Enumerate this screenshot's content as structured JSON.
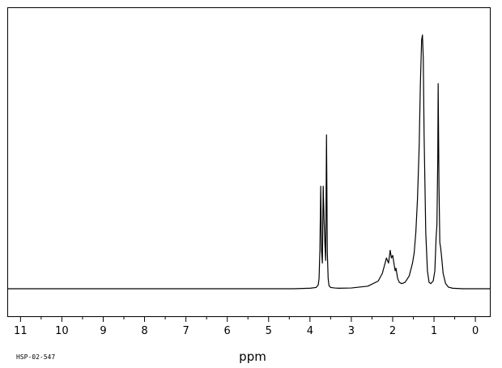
{
  "chart_data": {
    "type": "line",
    "title": "",
    "xlabel": "ppm",
    "ylabel": "",
    "sample_id": "HSP-02-547",
    "xlim": [
      11.3,
      -0.35
    ],
    "ylim": [
      0,
      100
    ],
    "x_reversed": true,
    "grid": false,
    "legend": "none",
    "major_ticks": [
      11,
      10,
      9,
      8,
      7,
      6,
      5,
      4,
      3,
      2,
      1,
      0
    ],
    "tick_labels": [
      "11",
      "10",
      "9",
      "8",
      "7",
      "6",
      "5",
      "4",
      "3",
      "2",
      "1",
      "0"
    ],
    "minor_tick_step": 0.5,
    "line_color": "#000000",
    "series": [
      {
        "x": [
          11.3,
          10.0,
          8.0,
          6.0,
          4.4,
          4.0,
          3.85,
          3.8,
          3.78,
          3.76,
          3.74,
          3.72,
          3.7,
          3.68,
          3.66,
          3.64,
          3.62,
          3.6,
          3.58,
          3.56,
          3.54,
          3.5,
          3.4,
          3.3,
          3.0,
          2.6,
          2.35,
          2.25,
          2.2,
          2.15,
          2.1,
          2.06,
          2.03,
          2.0,
          1.97,
          1.94,
          1.92,
          1.88,
          1.84,
          1.78,
          1.7,
          1.6,
          1.52,
          1.48,
          1.44,
          1.4,
          1.36,
          1.33,
          1.3,
          1.28,
          1.26,
          1.24,
          1.2,
          1.16,
          1.12,
          1.08,
          1.02,
          0.98,
          0.95,
          0.93,
          0.91,
          0.9,
          0.88,
          0.86,
          0.84,
          0.82,
          0.78,
          0.72,
          0.65,
          0.55,
          0.3,
          0.0,
          -0.35
        ],
        "y": [
          0,
          0,
          0,
          0,
          0,
          0.2,
          0.5,
          1.5,
          4,
          15,
          40,
          15,
          10,
          40,
          28,
          18,
          11,
          60,
          14,
          4,
          1.2,
          0.5,
          0.3,
          0.2,
          0.3,
          1,
          3,
          6,
          9,
          12,
          10,
          15,
          12,
          13,
          10,
          7,
          8,
          4,
          2.5,
          2,
          2.5,
          5,
          10,
          14,
          22,
          35,
          55,
          80,
          97,
          99,
          90,
          60,
          22,
          7,
          2.5,
          2,
          3,
          7,
          20,
          25,
          50,
          80,
          40,
          18,
          16,
          13,
          6,
          2,
          0.6,
          0.2,
          0,
          0,
          0
        ]
      }
    ]
  }
}
